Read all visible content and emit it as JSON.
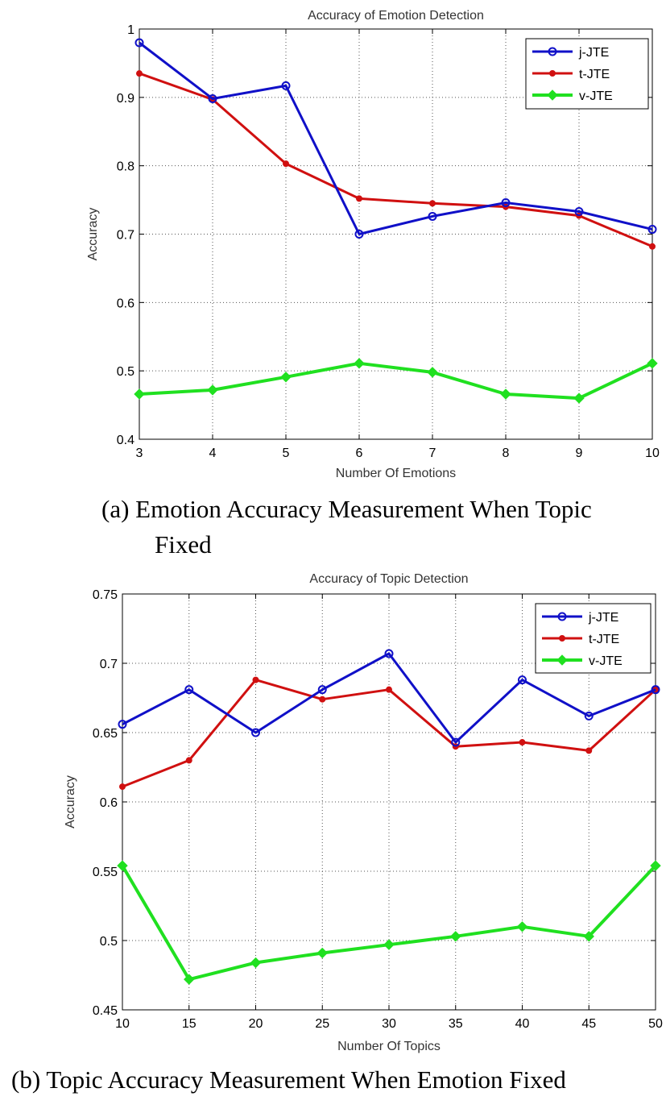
{
  "figures": [
    {
      "caption_line1": "(a) Emotion Accuracy Measurement When Topic",
      "caption_line2": "Fixed"
    },
    {
      "caption_line1": "(b) Topic Accuracy Measurement When Emotion Fixed"
    }
  ],
  "chart_data": [
    {
      "type": "line",
      "title": "Accuracy of Emotion Detection",
      "xlabel": "Number Of Emotions",
      "ylabel": "Accuracy",
      "x": [
        3,
        4,
        5,
        6,
        7,
        8,
        9,
        10
      ],
      "xticks": [
        "3",
        "4",
        "5",
        "6",
        "7",
        "8",
        "9",
        "10"
      ],
      "xlim": [
        3,
        10
      ],
      "ylim": [
        0.4,
        1.0
      ],
      "yticks": [
        "0.4",
        "0.5",
        "0.6",
        "0.7",
        "0.8",
        "0.9",
        "1"
      ],
      "grid": true,
      "legend_position": "top-right",
      "series": [
        {
          "name": "j-JTE",
          "color": "#1010c8",
          "marker": "circle",
          "values": [
            0.98,
            0.898,
            0.917,
            0.7,
            0.726,
            0.746,
            0.733,
            0.707
          ]
        },
        {
          "name": "t-JTE",
          "color": "#d01010",
          "marker": "dot",
          "values": [
            0.935,
            0.897,
            0.803,
            0.752,
            0.745,
            0.74,
            0.727,
            0.682
          ]
        },
        {
          "name": "v-JTE",
          "color": "#20e020",
          "marker": "diamond",
          "values": [
            0.466,
            0.472,
            0.491,
            0.511,
            0.498,
            0.466,
            0.46,
            0.511
          ]
        }
      ]
    },
    {
      "type": "line",
      "title": "Accuracy of Topic Detection",
      "xlabel": "Number Of Topics",
      "ylabel": "Accuracy",
      "x": [
        10,
        15,
        20,
        25,
        30,
        35,
        40,
        45,
        50
      ],
      "xticks": [
        "10",
        "15",
        "20",
        "25",
        "30",
        "35",
        "40",
        "45",
        "50"
      ],
      "xlim": [
        10,
        50
      ],
      "ylim": [
        0.45,
        0.75
      ],
      "yticks": [
        "0.45",
        "0.5",
        "0.55",
        "0.6",
        "0.65",
        "0.7",
        "0.75"
      ],
      "grid": true,
      "legend_position": "top-right",
      "series": [
        {
          "name": "j-JTE",
          "color": "#1010c8",
          "marker": "circle",
          "values": [
            0.656,
            0.681,
            0.65,
            0.681,
            0.707,
            0.643,
            0.688,
            0.662,
            0.681
          ]
        },
        {
          "name": "t-JTE",
          "color": "#d01010",
          "marker": "dot",
          "values": [
            0.611,
            0.63,
            0.688,
            0.674,
            0.681,
            0.64,
            0.643,
            0.637,
            0.681
          ]
        },
        {
          "name": "v-JTE",
          "color": "#20e020",
          "marker": "diamond",
          "values": [
            0.554,
            0.472,
            0.484,
            0.491,
            0.497,
            0.503,
            0.51,
            0.503,
            0.554
          ]
        }
      ]
    }
  ]
}
